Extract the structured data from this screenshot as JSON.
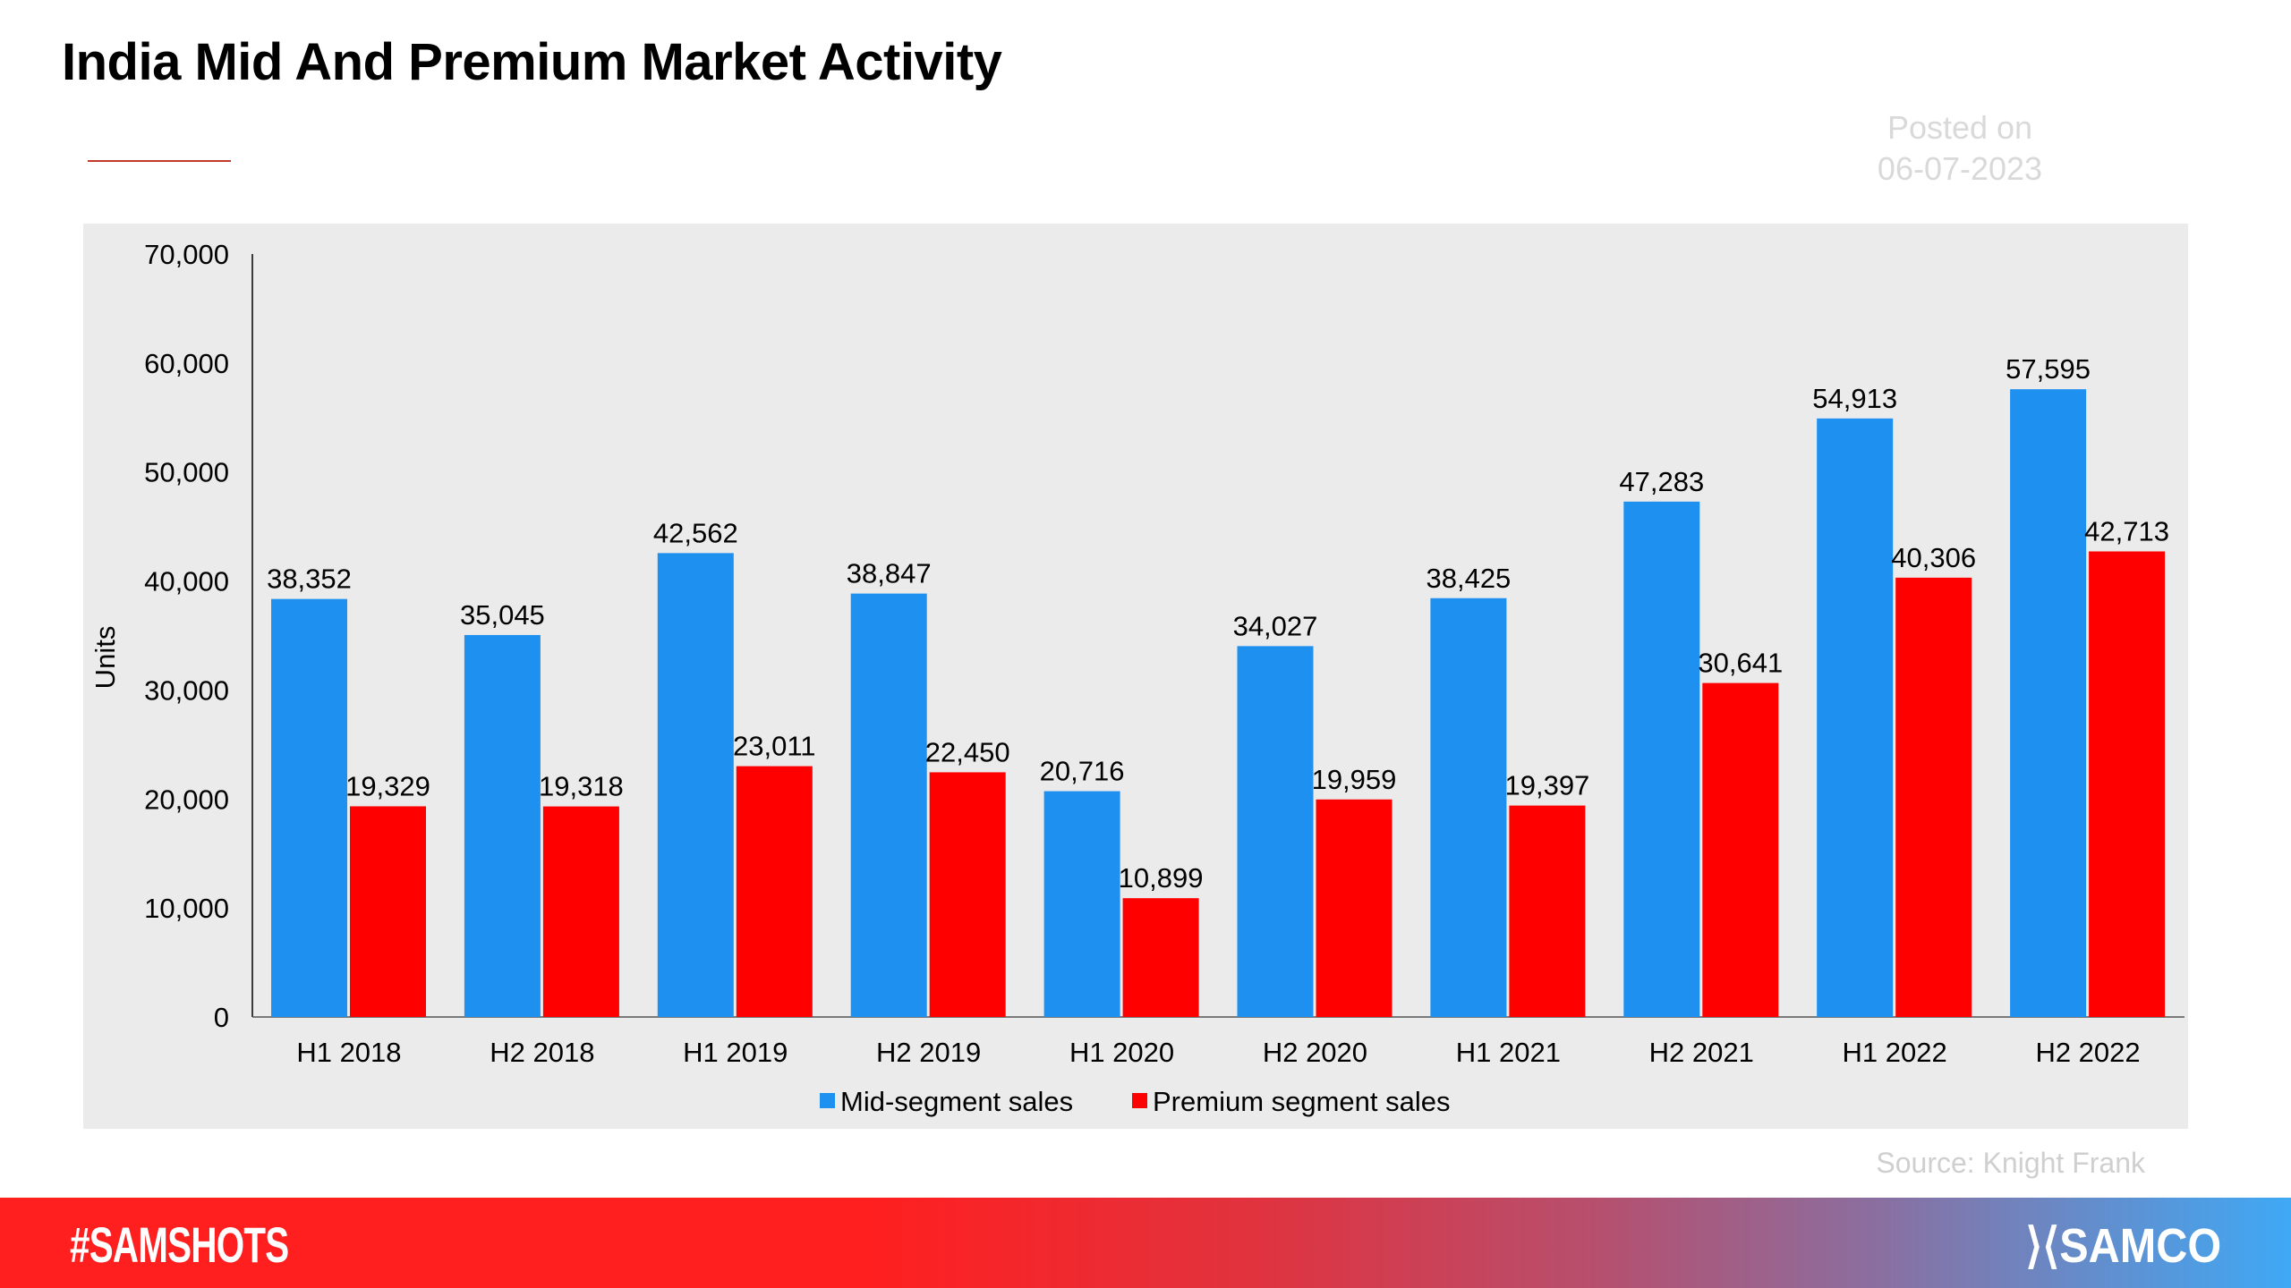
{
  "header": {
    "title": "India Mid And Premium Market Activity",
    "posted_label": "Posted on",
    "posted_date": "06-07-2023"
  },
  "footer": {
    "source": "Source: Knight Frank",
    "hashtag": "#SAMSHOTS",
    "brand": "SAMCO"
  },
  "colors": {
    "mid": "#1e90f0",
    "premium": "#ff0000",
    "panel": "#ebebeb"
  },
  "chart_data": {
    "type": "bar",
    "title": "",
    "xlabel": "",
    "ylabel": "Units",
    "ylim": [
      0,
      70000
    ],
    "yticks": [
      "0",
      "10,000",
      "20,000",
      "30,000",
      "40,000",
      "50,000",
      "60,000",
      "70,000"
    ],
    "grid": false,
    "legend": "bottom",
    "categories": [
      "H1 2018",
      "H2 2018",
      "H1 2019",
      "H2 2019",
      "H1 2020",
      "H2 2020",
      "H1 2021",
      "H2 2021",
      "H1 2022",
      "H2 2022"
    ],
    "series": [
      {
        "name": "Mid-segment sales",
        "values": [
          38352,
          35045,
          42562,
          38847,
          20716,
          34027,
          38425,
          47283,
          54913,
          57595
        ]
      },
      {
        "name": "Premium segment sales",
        "values": [
          19329,
          19318,
          23011,
          22450,
          10899,
          19959,
          19397,
          30641,
          40306,
          42713
        ]
      }
    ]
  }
}
